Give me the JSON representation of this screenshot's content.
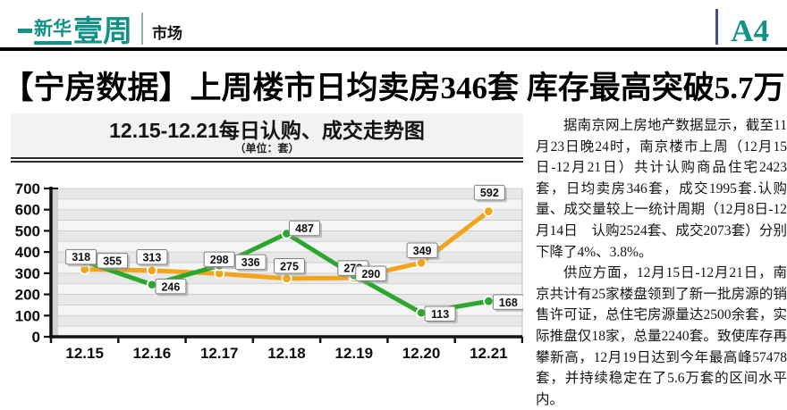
{
  "masthead": {
    "logo_small": "新华",
    "logo_large": "壹周",
    "section_label": "市场",
    "page_number": "A4",
    "brand_color": "#129186"
  },
  "headline": "【宁房数据】上周楼市日均卖房346套 库存最高突破5.7万",
  "article": {
    "paragraphs": [
      "据南京网上房地产数据显示，截至11月23日晚24时，南京楼市上周（12月15日-12月21日）共计认购商品住宅2423套，日均卖房346套，成交1995套.认购量、成交量较上一统计周期（12月8日-12月14日　认购2524套、成交2073套）分别下降了4%、3.8%。",
      "供应方面，12月15日-12月21日，南京共计有25家楼盘领到了新一批房源的销售许可证，总住宅房源量达2500余套，实际推盘仅18家，总量2240套。致使库存再攀新高，12月19日达到今年最高峰57478套，并持续稳定在了5.6万套的区间水平内。"
    ]
  },
  "chart_data": {
    "type": "line",
    "title": "12.15-12.21每日认购、成交走势图",
    "subtitle": "（单位：套）",
    "categories": [
      "12.15",
      "12.16",
      "12.17",
      "12.18",
      "12.19",
      "12.20",
      "12.21"
    ],
    "series": [
      {
        "name": "认购",
        "slug": "subscription-line",
        "color": "#f0a51c",
        "values": [
          318,
          313,
          298,
          275,
          278,
          349,
          592
        ]
      },
      {
        "name": "成交",
        "slug": "transaction-line",
        "color": "#2da62d",
        "values": [
          355,
          246,
          336,
          487,
          290,
          113,
          168
        ]
      }
    ],
    "ylim": [
      0,
      700
    ],
    "ytick_step": 100,
    "band_step": 50,
    "grid": true,
    "legend_position": "none",
    "point_labels_visible": true,
    "label_offsets": [
      [
        [
          -4,
          -14
        ],
        [
          0,
          -15
        ],
        [
          0,
          -16
        ],
        [
          3,
          -14
        ],
        [
          -1,
          -11
        ],
        [
          1,
          -14
        ],
        [
          1,
          -21
        ]
      ],
      [
        [
          31,
          -1
        ],
        [
          21,
          2
        ],
        [
          35,
          -4
        ],
        [
          20,
          -6
        ],
        [
          19,
          -2
        ],
        [
          21,
          1
        ],
        [
          22,
          1
        ]
      ]
    ]
  }
}
